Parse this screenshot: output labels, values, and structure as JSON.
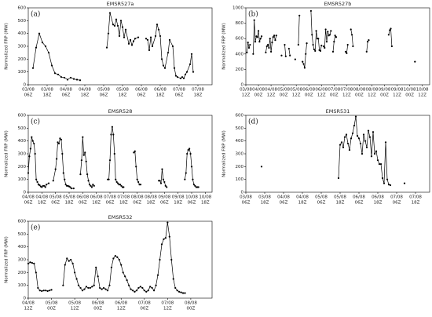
{
  "chart_data": [
    {
      "type": "line",
      "title": "EMSR527a",
      "panel_label": "(a)",
      "y_label": "Normalized FRP (MW)",
      "color": "#000000",
      "xlim": [
        0,
        117
      ],
      "ylim": [
        0,
        600
      ],
      "yticks": [
        0,
        100,
        200,
        300,
        400,
        500,
        600
      ],
      "xticks": [
        {
          "value": 0,
          "label": [
            "03/08",
            "06Z"
          ]
        },
        {
          "value": 12,
          "label": [
            "03/08",
            "18Z"
          ]
        },
        {
          "value": 24,
          "label": [
            "04/08",
            "06Z"
          ]
        },
        {
          "value": 36,
          "label": [
            "04/08",
            "18Z"
          ]
        },
        {
          "value": 48,
          "label": [
            "05/08",
            "06Z"
          ]
        },
        {
          "value": 60,
          "label": [
            "05/08",
            "18Z"
          ]
        },
        {
          "value": 72,
          "label": [
            "06/08",
            "06Z"
          ]
        },
        {
          "value": 84,
          "label": [
            "06/08",
            "18Z"
          ]
        },
        {
          "value": 96,
          "label": [
            "07/08",
            "06Z"
          ]
        },
        {
          "value": 108,
          "label": [
            "07/08",
            "18Z"
          ]
        }
      ],
      "x": [
        3,
        5,
        7,
        9,
        11,
        13,
        15,
        17,
        19,
        21,
        23,
        25,
        27,
        29,
        31,
        33,
        null,
        50,
        51,
        52,
        54,
        55,
        56,
        57,
        58,
        59,
        60,
        61,
        62,
        64,
        65,
        66,
        67,
        68,
        70,
        null,
        75,
        76,
        77,
        78,
        79,
        81,
        82,
        83,
        84,
        85,
        86,
        87,
        89,
        90,
        92,
        93,
        94,
        95,
        97,
        98,
        99,
        100,
        101,
        103,
        104,
        105
      ],
      "values": [
        130,
        290,
        400,
        330,
        300,
        250,
        150,
        90,
        80,
        60,
        55,
        40,
        55,
        45,
        40,
        35,
        null,
        290,
        400,
        560,
        470,
        460,
        510,
        460,
        380,
        500,
        450,
        370,
        430,
        320,
        350,
        310,
        340,
        360,
        370,
        null,
        360,
        350,
        270,
        370,
        300,
        380,
        470,
        430,
        380,
        200,
        150,
        130,
        250,
        350,
        300,
        130,
        70,
        60,
        50,
        60,
        50,
        80,
        100,
        160,
        240,
        100
      ]
    },
    {
      "type": "line",
      "title": "EMSR527b",
      "panel_label": "(b)",
      "y_label": "Normalized FRP (MW)",
      "color": "#000000",
      "xlim": [
        0,
        175
      ],
      "ylim": [
        0,
        1000
      ],
      "yticks": [
        0,
        200,
        400,
        600,
        800,
        1000
      ],
      "xticks": [
        {
          "value": 0,
          "label": [
            "03/08",
            "12Z"
          ]
        },
        {
          "value": 12,
          "label": [
            "04/08",
            "00Z"
          ]
        },
        {
          "value": 24,
          "label": [
            "04/08",
            "12Z"
          ]
        },
        {
          "value": 36,
          "label": [
            "05/08",
            "00Z"
          ]
        },
        {
          "value": 48,
          "label": [
            "05/08",
            "12Z"
          ]
        },
        {
          "value": 60,
          "label": [
            "06/08",
            "00Z"
          ]
        },
        {
          "value": 72,
          "label": [
            "06/08",
            "12Z"
          ]
        },
        {
          "value": 84,
          "label": [
            "07/08",
            "00Z"
          ]
        },
        {
          "value": 96,
          "label": [
            "07/08",
            "12Z"
          ]
        },
        {
          "value": 108,
          "label": [
            "08/08",
            "00Z"
          ]
        },
        {
          "value": 120,
          "label": [
            "08/08",
            "12Z"
          ]
        },
        {
          "value": 132,
          "label": [
            "09/08",
            "00Z"
          ]
        },
        {
          "value": 144,
          "label": [
            "09/08",
            "12Z"
          ]
        },
        {
          "value": 156,
          "label": [
            "10/08",
            "00Z"
          ]
        },
        {
          "value": 168,
          "label": [
            "10/08",
            "12Z"
          ]
        }
      ],
      "x": [
        1,
        2,
        3,
        4,
        null,
        7,
        8,
        9,
        10,
        11,
        12,
        13,
        14,
        15,
        null,
        19,
        20,
        21,
        22,
        23,
        24,
        25,
        26,
        27,
        28,
        29,
        null,
        34,
        null,
        37,
        38,
        null,
        41,
        42,
        null,
        47,
        null,
        50,
        51,
        null,
        54,
        55,
        56,
        57,
        58,
        null,
        62,
        63,
        64,
        65,
        66,
        67,
        68,
        69,
        70,
        71,
        72,
        null,
        74,
        75,
        76,
        77,
        78,
        79,
        80,
        81,
        null,
        83,
        84,
        85,
        86,
        null,
        95,
        96,
        97,
        null,
        100,
        101,
        102,
        null,
        115,
        116,
        117,
        null,
        136,
        137,
        138,
        139,
        null,
        161
      ],
      "values": [
        420,
        550,
        480,
        520,
        null,
        400,
        840,
        560,
        630,
        620,
        700,
        560,
        600,
        630,
        null,
        420,
        500,
        520,
        480,
        600,
        430,
        550,
        620,
        640,
        580,
        640,
        null,
        380,
        null,
        520,
        370,
        null,
        470,
        380,
        null,
        330,
        null,
        520,
        900,
        null,
        300,
        270,
        220,
        400,
        540,
        null,
        960,
        650,
        520,
        460,
        440,
        700,
        600,
        600,
        450,
        440,
        510,
        null,
        500,
        480,
        720,
        560,
        690,
        640,
        650,
        700,
        null,
        430,
        560,
        640,
        620,
        null,
        430,
        410,
        520,
        null,
        720,
        650,
        500,
        null,
        430,
        560,
        580,
        null,
        650,
        710,
        730,
        500,
        null,
        300
      ]
    },
    {
      "type": "line",
      "title": "EMSR528",
      "panel_label": "(c)",
      "y_label": "Normalized FRP (MW)",
      "color": "#000000",
      "xlim": [
        0,
        162
      ],
      "ylim": [
        0,
        600
      ],
      "yticks": [
        0,
        100,
        200,
        300,
        400,
        500,
        600
      ],
      "xticks": [
        {
          "value": 0,
          "label": [
            "04/08",
            "06Z"
          ]
        },
        {
          "value": 12,
          "label": [
            "04/08",
            "18Z"
          ]
        },
        {
          "value": 24,
          "label": [
            "05/08",
            "06Z"
          ]
        },
        {
          "value": 36,
          "label": [
            "05/08",
            "18Z"
          ]
        },
        {
          "value": 48,
          "label": [
            "06/08",
            "06Z"
          ]
        },
        {
          "value": 60,
          "label": [
            "06/08",
            "18Z"
          ]
        },
        {
          "value": 72,
          "label": [
            "07/08",
            "06Z"
          ]
        },
        {
          "value": 84,
          "label": [
            "07/08",
            "18Z"
          ]
        },
        {
          "value": 96,
          "label": [
            "08/08",
            "06Z"
          ]
        },
        {
          "value": 108,
          "label": [
            "08/08",
            "18Z"
          ]
        },
        {
          "value": 120,
          "label": [
            "09/08",
            "06Z"
          ]
        },
        {
          "value": 132,
          "label": [
            "09/08",
            "18Z"
          ]
        },
        {
          "value": 144,
          "label": [
            "10/08",
            "06Z"
          ]
        },
        {
          "value": 156,
          "label": [
            "10/08",
            "18Z"
          ]
        }
      ],
      "x": [
        0,
        1,
        2,
        3,
        4,
        5,
        6,
        7,
        8,
        9,
        10,
        11,
        12,
        13,
        14,
        15,
        16,
        18,
        null,
        22,
        24,
        25,
        26,
        27,
        28,
        29,
        30,
        31,
        32,
        33,
        34,
        35,
        36,
        37,
        38,
        40,
        null,
        46,
        47,
        48,
        49,
        50,
        51,
        52,
        53,
        54,
        55,
        56,
        57,
        58,
        null,
        70,
        71,
        72,
        73,
        74,
        75,
        76,
        77,
        78,
        79,
        80,
        81,
        82,
        83,
        84,
        null,
        93,
        94,
        95,
        96,
        97,
        98,
        99,
        null,
        115,
        116,
        117,
        118,
        119,
        120,
        121,
        122,
        null,
        138,
        139,
        140,
        141,
        142,
        143,
        144,
        145,
        146,
        147,
        148,
        149,
        150
      ],
      "values": [
        150,
        280,
        340,
        430,
        400,
        380,
        300,
        100,
        80,
        60,
        55,
        45,
        40,
        50,
        50,
        40,
        60,
        70,
        null,
        90,
        180,
        260,
        390,
        380,
        420,
        410,
        300,
        150,
        100,
        60,
        50,
        50,
        45,
        40,
        30,
        30,
        null,
        140,
        250,
        430,
        290,
        310,
        240,
        140,
        90,
        60,
        50,
        40,
        60,
        50,
        null,
        100,
        100,
        250,
        450,
        510,
        450,
        300,
        100,
        80,
        70,
        60,
        60,
        50,
        40,
        40,
        null,
        310,
        320,
        200,
        100,
        80,
        60,
        60,
        null,
        90,
        90,
        70,
        180,
        100,
        80,
        50,
        40,
        null,
        100,
        150,
        300,
        330,
        340,
        300,
        200,
        100,
        60,
        50,
        40,
        40,
        40
      ]
    },
    {
      "type": "line",
      "title": "EMSR531",
      "panel_label": "(d)",
      "y_label": "Normalized FRP (MW)",
      "color": "#000000",
      "xlim": [
        0,
        117
      ],
      "ylim": [
        0,
        600
      ],
      "yticks": [
        0,
        100,
        200,
        300,
        400,
        500,
        600
      ],
      "xticks": [
        {
          "value": 0,
          "label": [
            "03/08",
            "06Z"
          ]
        },
        {
          "value": 12,
          "label": [
            "03/08",
            "18Z"
          ]
        },
        {
          "value": 24,
          "label": [
            "04/08",
            "06Z"
          ]
        },
        {
          "value": 36,
          "label": [
            "04/08",
            "18Z"
          ]
        },
        {
          "value": 48,
          "label": [
            "05/08",
            "06Z"
          ]
        },
        {
          "value": 60,
          "label": [
            "05/08",
            "18Z"
          ]
        },
        {
          "value": 72,
          "label": [
            "06/08",
            "06Z"
          ]
        },
        {
          "value": 84,
          "label": [
            "06/08",
            "18Z"
          ]
        },
        {
          "value": 96,
          "label": [
            "07/08",
            "06Z"
          ]
        },
        {
          "value": 108,
          "label": [
            "07/08",
            "18Z"
          ]
        }
      ],
      "x": [
        10,
        null,
        59,
        60,
        61,
        62,
        63,
        64,
        65,
        66,
        67,
        68,
        69,
        70,
        71,
        72,
        73,
        74,
        75,
        76,
        77,
        78,
        79,
        80,
        81,
        82,
        83,
        84,
        85,
        86,
        87,
        88,
        89,
        90,
        91,
        92,
        null,
        101
      ],
      "values": [
        200,
        null,
        110,
        370,
        390,
        350,
        430,
        450,
        380,
        330,
        420,
        460,
        520,
        590,
        440,
        420,
        380,
        300,
        450,
        400,
        350,
        480,
        430,
        280,
        470,
        300,
        320,
        250,
        220,
        220,
        110,
        70,
        390,
        100,
        60,
        55,
        null,
        70
      ]
    },
    {
      "type": "line",
      "title": "EMSR532",
      "panel_label": "(e)",
      "y_label": "Normalized FRP (MW)",
      "color": "#000000",
      "xlim": [
        0,
        95
      ],
      "ylim": [
        0,
        600
      ],
      "yticks": [
        0,
        100,
        200,
        300,
        400,
        500,
        600
      ],
      "xticks": [
        {
          "value": 0,
          "label": [
            "04/08",
            "12Z"
          ]
        },
        {
          "value": 12,
          "label": [
            "05/08",
            "00Z"
          ]
        },
        {
          "value": 24,
          "label": [
            "05/08",
            "12Z"
          ]
        },
        {
          "value": 36,
          "label": [
            "06/08",
            "00Z"
          ]
        },
        {
          "value": 48,
          "label": [
            "06/08",
            "12Z"
          ]
        },
        {
          "value": 60,
          "label": [
            "07/08",
            "00Z"
          ]
        },
        {
          "value": 72,
          "label": [
            "07/08",
            "12Z"
          ]
        },
        {
          "value": 84,
          "label": [
            "08/08",
            "00Z"
          ]
        }
      ],
      "x": [
        0,
        1,
        2,
        3,
        4,
        5,
        6,
        7,
        8,
        9,
        10,
        11,
        12,
        null,
        18,
        19,
        20,
        21,
        22,
        23,
        24,
        25,
        26,
        27,
        28,
        29,
        30,
        31,
        32,
        33,
        34,
        35,
        36,
        37,
        38,
        39,
        40,
        41,
        42,
        43,
        44,
        45,
        46,
        47,
        48,
        49,
        50,
        51,
        52,
        53,
        54,
        55,
        56,
        57,
        58,
        59,
        60,
        61,
        62,
        63,
        64,
        65,
        66,
        67,
        68,
        69,
        70,
        71,
        72,
        73,
        74,
        75,
        76,
        77,
        78,
        79,
        80,
        81
      ],
      "values": [
        270,
        280,
        275,
        270,
        200,
        80,
        60,
        55,
        60,
        60,
        55,
        60,
        65,
        null,
        100,
        260,
        310,
        290,
        300,
        270,
        200,
        150,
        100,
        80,
        60,
        70,
        90,
        80,
        80,
        90,
        100,
        240,
        170,
        80,
        70,
        80,
        70,
        60,
        100,
        240,
        310,
        330,
        320,
        300,
        260,
        200,
        170,
        140,
        100,
        70,
        60,
        50,
        60,
        80,
        90,
        80,
        60,
        50,
        60,
        90,
        80,
        60,
        100,
        180,
        300,
        420,
        460,
        470,
        590,
        480,
        300,
        150,
        80,
        60,
        50,
        45,
        40,
        40
      ]
    }
  ]
}
